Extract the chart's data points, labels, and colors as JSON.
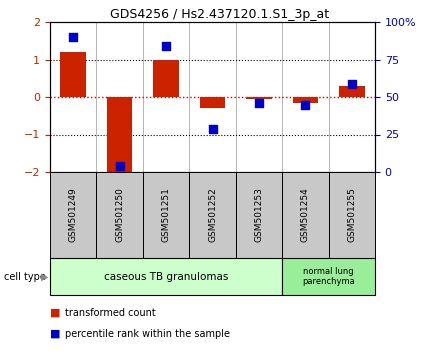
{
  "title": "GDS4256 / Hs2.437120.1.S1_3p_at",
  "samples": [
    "GSM501249",
    "GSM501250",
    "GSM501251",
    "GSM501252",
    "GSM501253",
    "GSM501254",
    "GSM501255"
  ],
  "red_bars": [
    1.2,
    -2.1,
    1.0,
    -0.3,
    -0.05,
    -0.15,
    0.3
  ],
  "blue_squares": [
    1.6,
    -1.85,
    1.35,
    -0.85,
    -0.15,
    -0.2,
    0.35
  ],
  "ylim": [
    -2.0,
    2.0
  ],
  "yticks_left": [
    -2,
    -1,
    0,
    1,
    2
  ],
  "cell_types": [
    {
      "label": "caseous TB granulomas",
      "n_samples": 5,
      "color": "#ccffcc"
    },
    {
      "label": "normal lung\nparenchyma",
      "n_samples": 2,
      "color": "#99ee99"
    }
  ],
  "bar_color": "#cc2200",
  "square_color": "#0000cc",
  "bar_width": 0.55,
  "square_size": 40,
  "plot_bg": "#ffffff",
  "zero_line_color": "#cc0000",
  "dotted_line_color": "#000000",
  "label_red": "transformed count",
  "label_blue": "percentile rank within the sample",
  "axis_color_right": "#0000cc",
  "axis_color_left": "#cc2200",
  "sample_box_color": "#c8c8c8",
  "right_tick_labels": [
    "0",
    "25",
    "50",
    "75",
    "100%"
  ],
  "right_tick_positions": [
    -2,
    -1,
    0,
    1,
    2
  ]
}
